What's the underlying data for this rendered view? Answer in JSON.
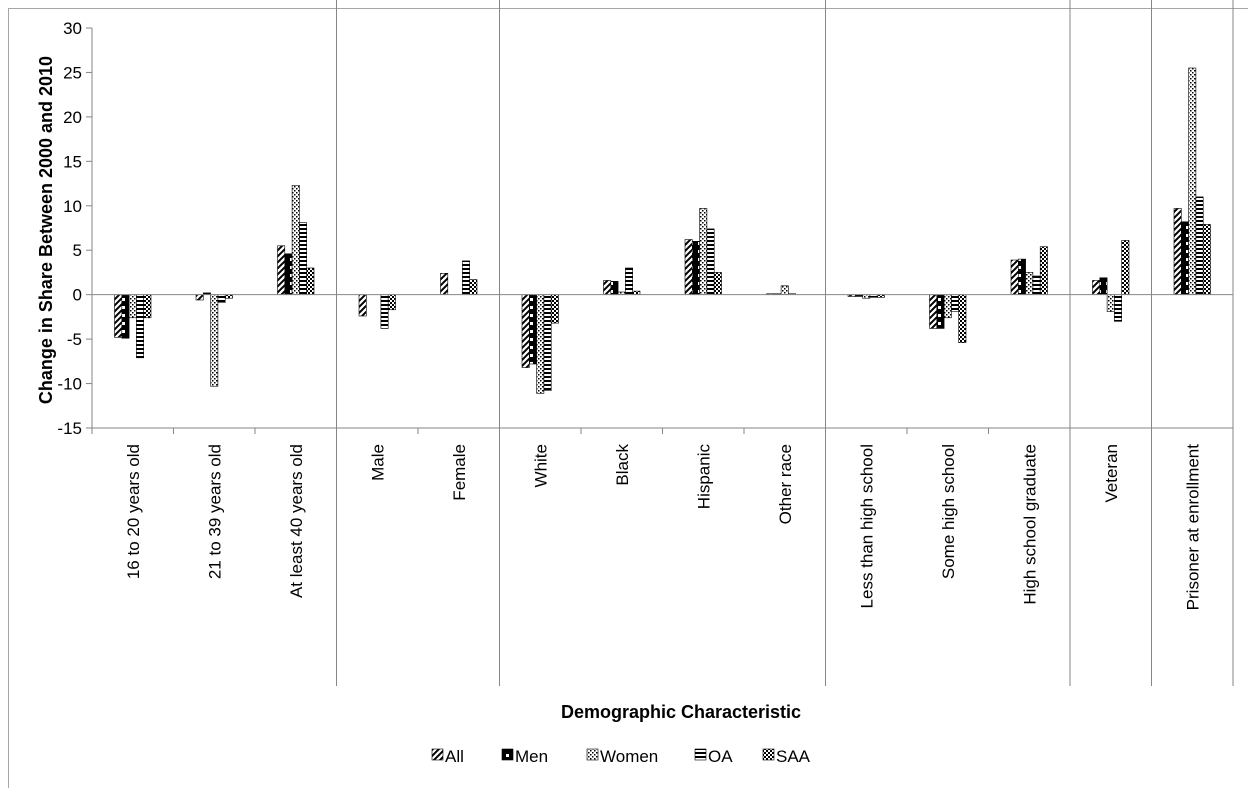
{
  "chart_data": {
    "type": "bar",
    "xlabel": "Demographic Characteristic",
    "ylabel": "Change in Share Between 2000 and 2010",
    "ylim": [
      -15,
      30
    ],
    "yticks": [
      "-15",
      "-10",
      "-5",
      "0",
      "5",
      "10",
      "15",
      "20",
      "25",
      "30"
    ],
    "ytick_values": [
      -15,
      -10,
      -5,
      0,
      5,
      10,
      15,
      20,
      25,
      30
    ],
    "grid": false,
    "legend_position": "bottom",
    "categories": [
      "16 to 20 years old",
      "21 to 39 years old",
      "At least 40 years old",
      "Male",
      "Female",
      "White",
      "Black",
      "Hispanic",
      "Other race",
      "Less than high school",
      "Some high school",
      "High school graduate",
      "Veteran",
      "Prisoner at enrollment"
    ],
    "group_boundaries_after": [
      2,
      4,
      8,
      11,
      12
    ],
    "series": [
      {
        "name": "All",
        "pattern": "diag",
        "values": [
          -4.8,
          -0.6,
          5.5,
          -2.4,
          2.4,
          -8.2,
          1.6,
          6.2,
          0.1,
          -0.2,
          -3.8,
          3.9,
          1.6,
          9.7
        ]
      },
      {
        "name": "Men",
        "pattern": "bricks",
        "values": [
          -4.9,
          0.2,
          4.6,
          0.0,
          0.0,
          -7.8,
          1.5,
          6.0,
          0.1,
          -0.2,
          -3.8,
          4.0,
          1.9,
          8.2
        ]
      },
      {
        "name": "Women",
        "pattern": "dots",
        "values": [
          -2.6,
          -10.3,
          12.3,
          0.0,
          0.0,
          -11.1,
          0.3,
          9.7,
          1.0,
          -0.4,
          -2.6,
          2.5,
          -1.9,
          25.5
        ]
      },
      {
        "name": "OA",
        "pattern": "hstripes",
        "values": [
          -7.1,
          -0.9,
          8.1,
          -3.8,
          3.8,
          -10.8,
          3.0,
          7.4,
          0.1,
          -0.3,
          -1.9,
          2.1,
          -3.0,
          11.0
        ]
      },
      {
        "name": "SAA",
        "pattern": "checker",
        "values": [
          -2.6,
          -0.4,
          3.0,
          -1.7,
          1.7,
          -3.2,
          0.4,
          2.5,
          0.0,
          -0.3,
          -5.4,
          5.4,
          6.1,
          7.9
        ]
      }
    ]
  }
}
